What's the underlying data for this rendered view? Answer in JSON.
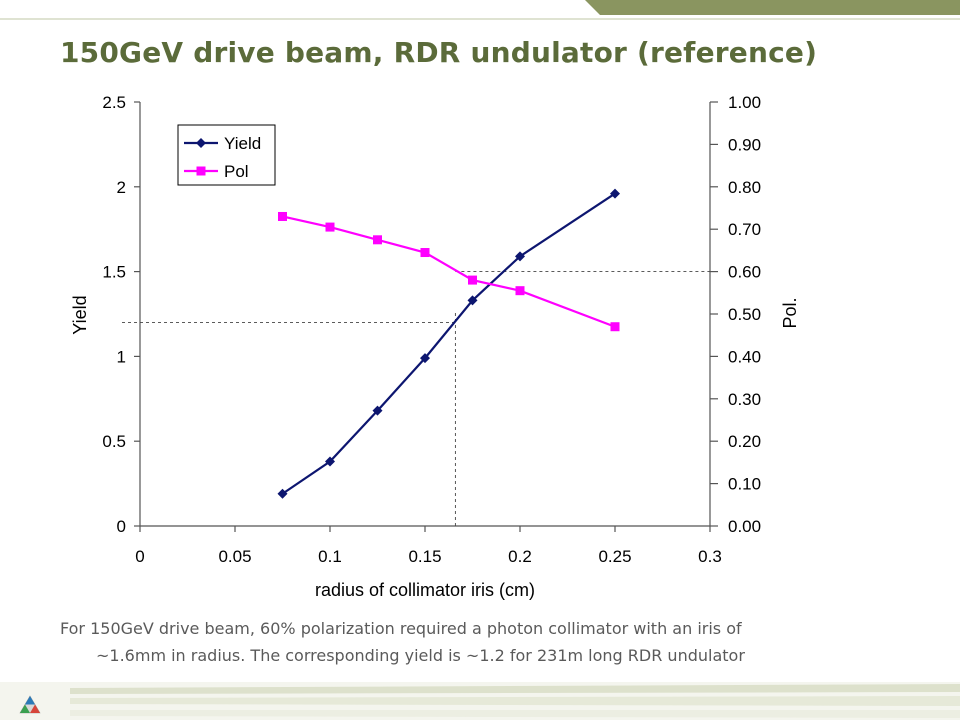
{
  "slide": {
    "title": "150GeV drive beam, RDR undulator (reference)",
    "caption_line1": "For 150GeV drive beam, 60% polarization required a photon collimator with an iris of",
    "caption_line2": "~1.6mm in radius.  The corresponding yield is ~1.2 for 231m long RDR undulator",
    "title_color": "#5b6b3a",
    "accent_color": "#8a9560"
  },
  "chart_data": {
    "type": "line",
    "title": "",
    "xlabel": "radius of collimator iris (cm)",
    "ylabel": "Yield",
    "y2label": "Pol.",
    "xlim": [
      0,
      0.3
    ],
    "ylim": [
      0,
      2.5
    ],
    "y2lim": [
      0,
      1.0
    ],
    "x_ticks": [
      "0",
      "0.05",
      "0.1",
      "0.15",
      "0.2",
      "0.25",
      "0.3"
    ],
    "y_ticks": [
      "0",
      "0.5",
      "1",
      "1.5",
      "2",
      "2.5"
    ],
    "y2_ticks": [
      "0.00",
      "0.10",
      "0.20",
      "0.30",
      "0.40",
      "0.50",
      "0.60",
      "0.70",
      "0.80",
      "0.90",
      "1.00"
    ],
    "grid": false,
    "legend_position": "top-left",
    "series": [
      {
        "name": "Yield",
        "axis": "left",
        "color": "#0d1670",
        "marker": "diamond",
        "x": [
          0.075,
          0.1,
          0.125,
          0.15,
          0.175,
          0.2,
          0.25
        ],
        "y": [
          0.19,
          0.38,
          0.68,
          0.99,
          1.33,
          1.59,
          1.96
        ]
      },
      {
        "name": "Pol",
        "axis": "right",
        "color": "#ff00ff",
        "marker": "square",
        "x": [
          0.075,
          0.1,
          0.125,
          0.15,
          0.175,
          0.2,
          0.25
        ],
        "y": [
          0.73,
          0.705,
          0.675,
          0.645,
          0.58,
          0.555,
          0.47
        ]
      }
    ],
    "reference_lines": [
      {
        "axis": "left",
        "from_x": 0,
        "to_x": 0.166,
        "y": 1.2
      },
      {
        "axis": "right",
        "from_x": 0.166,
        "to_x": 0.3,
        "y": 0.6
      },
      {
        "axis": "bottom",
        "x": 0.166,
        "from_y": 0,
        "to_y": 1.2
      }
    ]
  }
}
